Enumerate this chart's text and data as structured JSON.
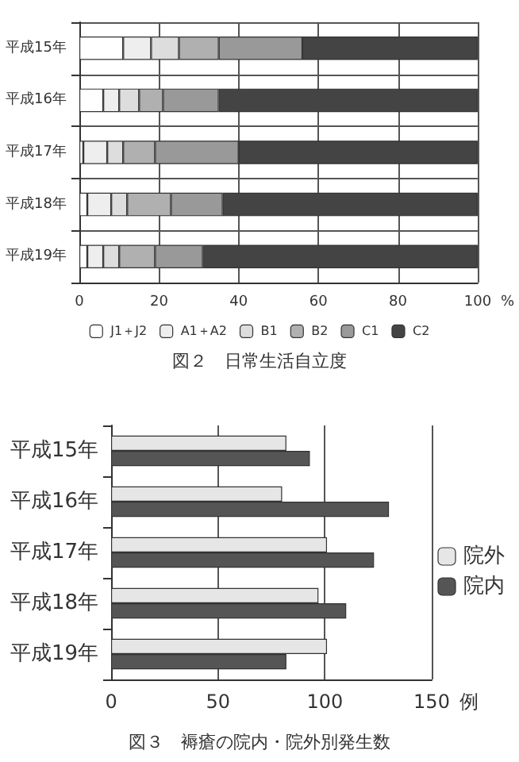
{
  "chart_data": [
    {
      "type": "bar",
      "orientation": "horizontal",
      "stacked": true,
      "title": "図２　日常生活自立度",
      "xlabel": "%",
      "categories": [
        "平成15年",
        "平成16年",
        "平成17年",
        "平成18年",
        "平成19年"
      ],
      "xlim": [
        0,
        100
      ],
      "xticks": [
        0,
        20,
        40,
        60,
        80,
        100
      ],
      "grid": true,
      "legend": "bottom",
      "series": [
        {
          "name": "J1＋J2",
          "color": "#ffffff",
          "values": [
            11,
            6,
            1,
            2,
            2
          ]
        },
        {
          "name": "A1＋A2",
          "color": "#eeeeee",
          "values": [
            7,
            4,
            6,
            6,
            4
          ]
        },
        {
          "name": "B1",
          "color": "#dddddd",
          "values": [
            7,
            5,
            4,
            4,
            4
          ]
        },
        {
          "name": "B2",
          "color": "#b0b0b0",
          "values": [
            10,
            6,
            8,
            11,
            9
          ]
        },
        {
          "name": "C1",
          "color": "#999999",
          "values": [
            21,
            14,
            21,
            13,
            12
          ]
        },
        {
          "name": "C2",
          "color": "#444444",
          "values": [
            44,
            65,
            60,
            64,
            69
          ]
        }
      ]
    },
    {
      "type": "bar",
      "orientation": "horizontal",
      "title": "図３　褥瘡の院内・院外別発生数",
      "xlabel": "例",
      "categories": [
        "平成15年",
        "平成16年",
        "平成17年",
        "平成18年",
        "平成19年"
      ],
      "xlim": [
        0,
        150
      ],
      "xticks": [
        0,
        50,
        100,
        150
      ],
      "grid": "x",
      "legend": "right",
      "series": [
        {
          "name": "院外",
          "color": "#e6e6e6",
          "values": [
            82,
            80,
            101,
            97,
            101
          ]
        },
        {
          "name": "院内",
          "color": "#555555",
          "values": [
            93,
            130,
            123,
            110,
            82
          ]
        }
      ]
    }
  ]
}
